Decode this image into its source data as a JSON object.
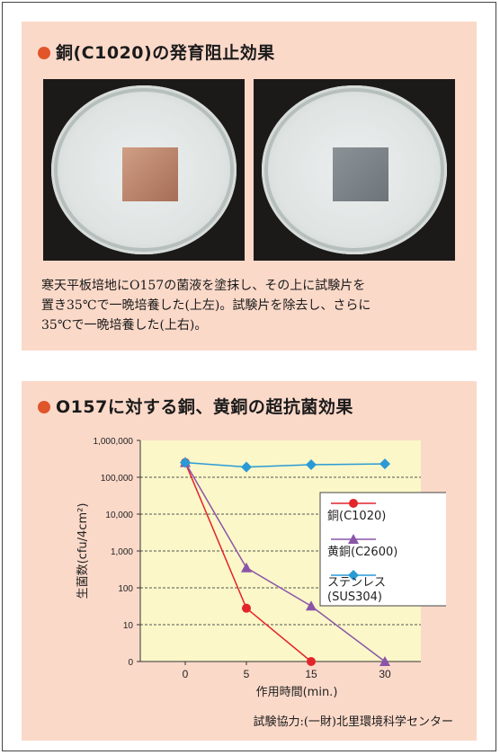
{
  "section1": {
    "title": "銅(C1020)の発育阻止効果",
    "caption_lines": [
      "寒天平板培地にO157の菌液を塗抹し、その上に試験片を",
      "置き35℃で一晩培養した(上左)。試験片を除去し、さらに",
      "35℃で一晩培養した(上右)。"
    ]
  },
  "section2": {
    "title": "O157に対する銅、黄銅の超抗菌効果",
    "credit": "試験協力:(一財)北里環境科学センター"
  },
  "colors": {
    "panel": "#fbd9c9",
    "plot_bg": "#fbf7c8",
    "bullet": "#e0552a",
    "copper": "#e3242b",
    "brass": "#8a55a8",
    "stainless": "#2a9ad6"
  },
  "chart_data": {
    "type": "line",
    "xlabel": "作用時間(min.)",
    "ylabel": "生菌数(cfu/4cm²)",
    "x_ticks": [
      "0",
      "5",
      "15",
      "30"
    ],
    "y_ticks": [
      "0",
      "10",
      "100",
      "1,000",
      "10,000",
      "100,000",
      "1,000,000"
    ],
    "y_scale": "log",
    "grid": true,
    "legend_position": "right",
    "series": [
      {
        "name": "銅(C1020)",
        "marker": "circle",
        "color": "#e3242b",
        "points": [
          {
            "x": "0",
            "y": 250000
          },
          {
            "x": "5",
            "y": 28
          },
          {
            "x": "15",
            "y": 0
          }
        ]
      },
      {
        "name": "黄銅(C2600)",
        "marker": "triangle",
        "color": "#8a55a8",
        "points": [
          {
            "x": "0",
            "y": 250000
          },
          {
            "x": "5",
            "y": 350
          },
          {
            "x": "15",
            "y": 32
          },
          {
            "x": "30",
            "y": 0
          }
        ]
      },
      {
        "name": "ステンレス(SUS304)",
        "marker": "diamond",
        "color": "#2a9ad6",
        "points": [
          {
            "x": "0",
            "y": 250000
          },
          {
            "x": "5",
            "y": 190000
          },
          {
            "x": "15",
            "y": 220000
          },
          {
            "x": "30",
            "y": 230000
          }
        ]
      }
    ]
  }
}
